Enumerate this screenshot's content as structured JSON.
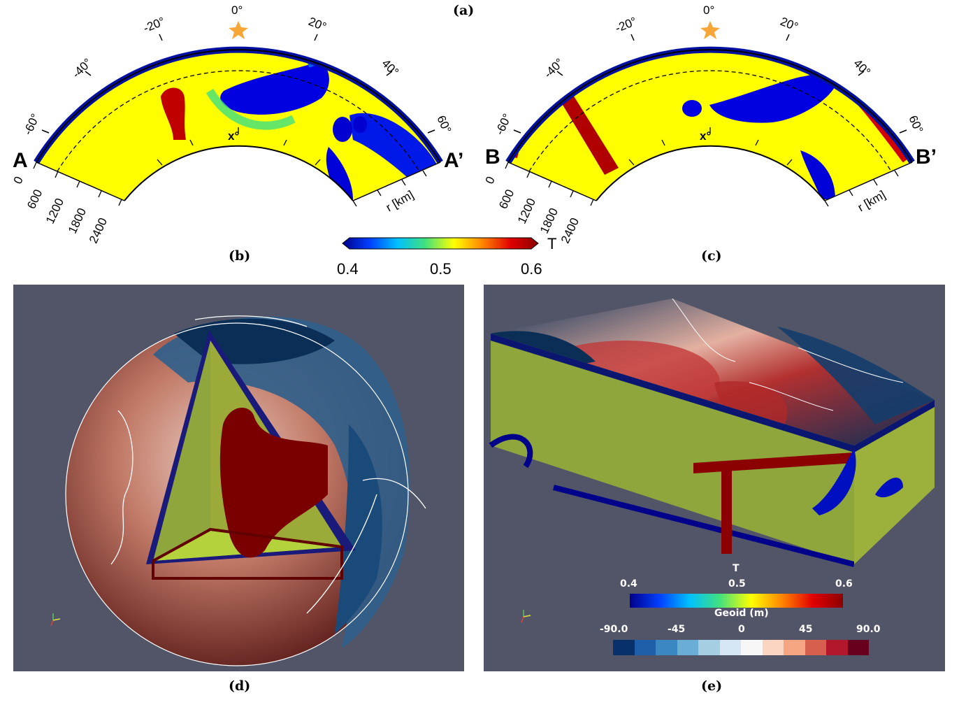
{
  "panels": {
    "a": "(a)",
    "b": "(b)",
    "c": "(c)",
    "d": "(d)",
    "e": "(e)"
  },
  "section_left": {
    "start_label": "A",
    "end_label": "A’",
    "angles": [
      "-60°",
      "-40°",
      "-20°",
      "0°",
      "20°",
      "40°",
      "60°"
    ],
    "center_marker": "x°",
    "depths": [
      "0",
      "600",
      "1200",
      "1800",
      "2400"
    ],
    "radius_label": "r [km]"
  },
  "section_right": {
    "start_label": "B",
    "end_label": "B’",
    "angles": [
      "-60°",
      "-40°",
      "-20°",
      "0°",
      "20°",
      "40°",
      "60°"
    ],
    "center_marker": "x°",
    "depths": [
      "0",
      "600",
      "1200",
      "1800",
      "2400"
    ],
    "radius_label": "r [km]"
  },
  "temperature_colorbar": {
    "title": "T",
    "ticks": [
      "0.4",
      "0.5",
      "0.6"
    ],
    "colors": [
      "#00008b",
      "#0040ff",
      "#00c0ff",
      "#40e080",
      "#ffff00",
      "#ff8000",
      "#e00000",
      "#8b0000"
    ]
  },
  "box_colorbars": {
    "temperature": {
      "title": "T",
      "ticks": [
        "0.4",
        "0.5",
        "0.6"
      ]
    },
    "geoid": {
      "title": "Geoid (m)",
      "ticks": [
        "-90.0",
        "-45",
        "0",
        "45",
        "90.0"
      ],
      "colors": [
        "#08306b",
        "#1f5ea8",
        "#3b87c2",
        "#6aaed6",
        "#a6cee3",
        "#d6e6f2",
        "#f7f7f7",
        "#fbd5c1",
        "#f4a582",
        "#d6604d",
        "#b2182b",
        "#67001f"
      ]
    }
  },
  "colors": {
    "background_3d": "#525568",
    "star": "#f7a638"
  }
}
